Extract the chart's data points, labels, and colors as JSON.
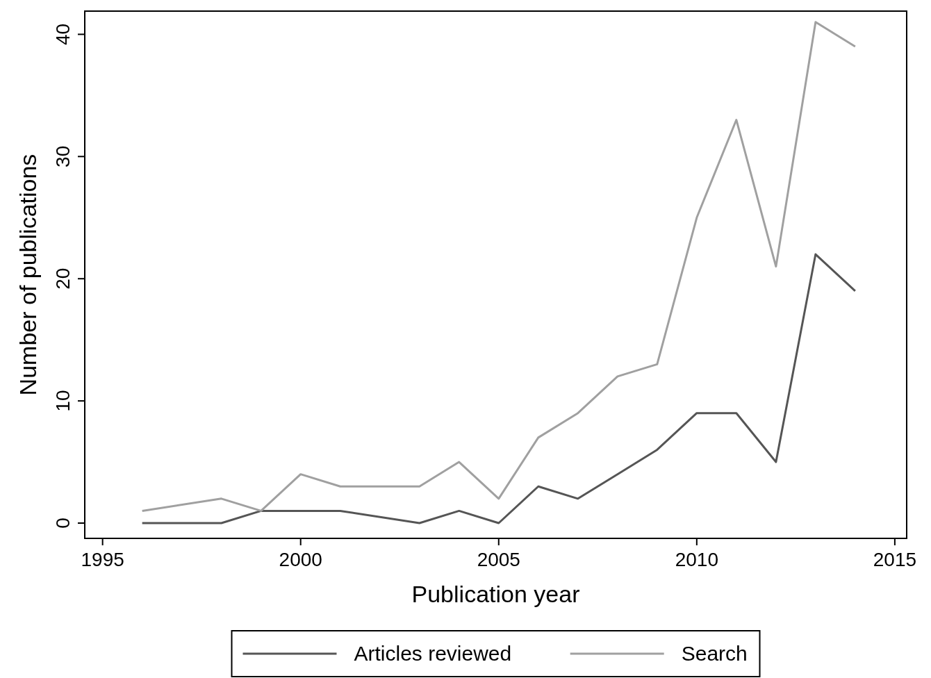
{
  "chart_data": {
    "type": "line",
    "xlabel": "Publication year",
    "ylabel": "Number of publications",
    "xlim": [
      1994.55,
      2015.3
    ],
    "xticks": [
      1995,
      2000,
      2005,
      2010,
      2015
    ],
    "ylim": [
      -1.25,
      41.9
    ],
    "yticks": [
      0,
      10,
      20,
      30,
      40
    ],
    "grid": false,
    "legend": "bottom",
    "marker": "none",
    "line_style": "solid",
    "series": [
      {
        "name": "Articles reviewed",
        "color": "#555555",
        "x": [
          1996,
          1998,
          1999,
          2001,
          2003,
          2004,
          2005,
          2006,
          2007,
          2008,
          2009,
          2010,
          2011,
          2012,
          2013,
          2014
        ],
        "values": [
          0,
          0,
          1,
          1,
          0,
          1,
          0,
          3,
          2,
          4,
          6,
          9,
          9,
          5,
          22,
          19
        ]
      },
      {
        "name": "Search",
        "color": "#a0a0a0",
        "x": [
          1996,
          1998,
          1999,
          2000,
          2001,
          2003,
          2004,
          2005,
          2006,
          2007,
          2008,
          2009,
          2010,
          2011,
          2012,
          2013,
          2014
        ],
        "values": [
          1,
          2,
          1,
          4,
          3,
          3,
          5,
          2,
          7,
          9,
          12,
          13,
          25,
          33,
          21,
          41,
          39
        ]
      }
    ]
  }
}
